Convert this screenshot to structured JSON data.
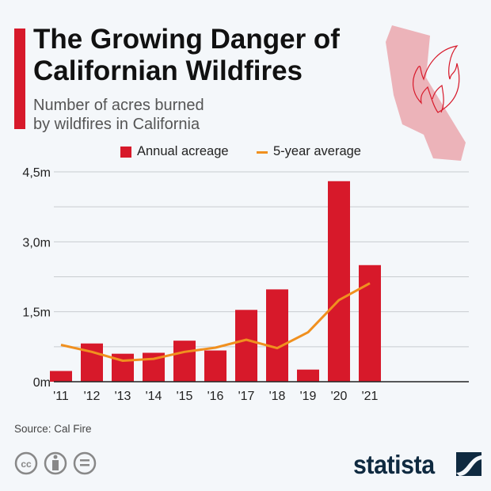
{
  "header": {
    "title": "The Growing Danger of Californian Wildfires",
    "subtitle_line1": "Number of acres burned",
    "subtitle_line2": "by wildfires in California"
  },
  "footer": {
    "source": "Source: Cal Fire",
    "brand": "statista",
    "license_icons": [
      "cc-icon",
      "attribution-icon",
      "no-derivatives-icon"
    ]
  },
  "colors": {
    "bar": "#d7192a",
    "line": "#f0901f",
    "map": "#ecb3b9",
    "flame": "#d7192a"
  },
  "chart_data": {
    "type": "bar",
    "title": "The Growing Danger of Californian Wildfires",
    "subtitle": "Number of acres burned by wildfires in California",
    "categories": [
      "'11",
      "'12",
      "'13",
      "'14",
      "'15",
      "'16",
      "'17",
      "'18",
      "'19",
      "'20",
      "'21"
    ],
    "series": [
      {
        "name": "Annual acreage",
        "type": "bar",
        "values": [
          0.23,
          0.82,
          0.6,
          0.62,
          0.88,
          0.67,
          1.54,
          1.98,
          0.26,
          4.3,
          2.5
        ]
      },
      {
        "name": "5-year average",
        "type": "line",
        "values": [
          0.79,
          0.64,
          0.45,
          0.49,
          0.64,
          0.73,
          0.9,
          0.72,
          1.06,
          1.75,
          2.11
        ]
      }
    ],
    "unit": "million acres",
    "ylim": [
      0,
      4.5
    ],
    "yticks": [
      0,
      1.5,
      3.0,
      4.5
    ],
    "ytick_labels": [
      "0m",
      "1,5m",
      "3,0m",
      "4,5m"
    ],
    "grid": true,
    "legend_position": "top"
  }
}
